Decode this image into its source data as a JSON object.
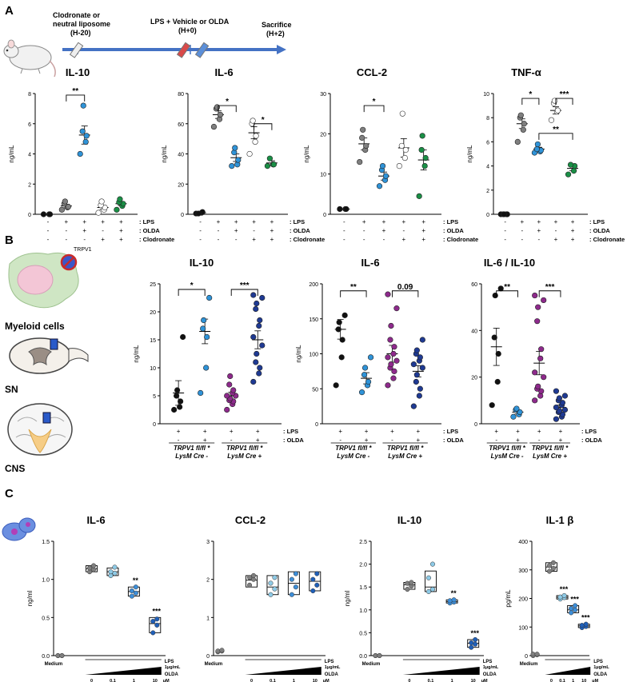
{
  "colors": {
    "gray": "#7f7f7f",
    "black": "#111111",
    "blue": "#2f93d8",
    "green": "#1a8f46",
    "purple": "#8e2a8c",
    "navy": "#1f3a93",
    "lightblue": "#8ecae6",
    "midblue": "#3d8ed8",
    "darkblue": "#1f5fb8"
  },
  "panel_labels": {
    "a": "A",
    "b": "B",
    "c": "C"
  },
  "timeline": {
    "step1": [
      "Clodronate or",
      "neutral liposome",
      "(H-20)"
    ],
    "step2": [
      "LPS + Vehicle or OLDA",
      "(H+0)"
    ],
    "step3": [
      "Sacrifice",
      "(H+2)"
    ]
  },
  "cartoons": {
    "trpv1": "TRPV1",
    "myeloid": "Myeloid cells",
    "sn": "SN",
    "cns": "CNS"
  },
  "sign_rows_a": {
    "labels": [
      ": LPS",
      ": OLDA",
      ": Clodronate"
    ],
    "LPS": [
      "-",
      "+",
      "+",
      "+",
      "+"
    ],
    "OLDA": [
      "-",
      "-",
      "+",
      "-",
      "+"
    ],
    "Clodronate": [
      "-",
      "-",
      "-",
      "+",
      "+"
    ]
  },
  "sign_rows_b": {
    "labels": [
      ": LPS",
      ": OLDA"
    ],
    "LPS": [
      "+",
      "+",
      "+",
      "+"
    ],
    "OLDA": [
      "-",
      "+",
      "-",
      "+"
    ],
    "genotype_left": [
      "TRPV1 fl/fl *",
      "LysM Cre -"
    ],
    "genotype_right": [
      "TRPV1 fl/fl *",
      "LysM Cre +"
    ]
  },
  "axis_c": {
    "medium": "Medium",
    "lps": "LPS",
    "lps_conc": "1μg/mL",
    "olda": "OLDA",
    "ticks": [
      "0",
      "0.1",
      "1",
      "10"
    ],
    "unit": "μM"
  },
  "chart_data": [
    {
      "panel": "A",
      "type": "scatter",
      "title": "IL-10",
      "ylabel": "ng/mL",
      "ylim": [
        0,
        8
      ],
      "yticks": [
        0,
        2,
        4,
        6,
        8
      ],
      "groups": [
        {
          "color": "black",
          "fill": true,
          "points": [
            0,
            0,
            0
          ],
          "mean": 0,
          "sem": 0
        },
        {
          "color": "gray",
          "fill": true,
          "points": [
            0.3,
            0.45,
            0.5,
            0.7,
            0.85
          ],
          "mean": 0.55,
          "sem": 0.12
        },
        {
          "color": "blue",
          "fill": true,
          "points": [
            4.0,
            4.8,
            5.2,
            5.5,
            7.2
          ],
          "mean": 5.25,
          "sem": 0.6
        },
        {
          "color": "black",
          "fill": false,
          "points": [
            0.1,
            0.3,
            0.45,
            0.6,
            0.85
          ],
          "mean": 0.45,
          "sem": 0.13
        },
        {
          "color": "green",
          "fill": true,
          "points": [
            0.3,
            0.55,
            0.7,
            0.8,
            1.0
          ],
          "mean": 0.7,
          "sem": 0.12
        }
      ],
      "sig": [
        {
          "from": 1,
          "to": 2,
          "y": 7.9,
          "label": "**"
        }
      ]
    },
    {
      "panel": "A",
      "type": "scatter",
      "title": "IL-6",
      "ylabel": "ng/mL",
      "ylim": [
        0,
        80
      ],
      "yticks": [
        0,
        20,
        40,
        60,
        80
      ],
      "groups": [
        {
          "color": "black",
          "fill": true,
          "points": [
            0.5,
            1,
            1.5,
            0.5
          ],
          "mean": 1,
          "sem": 0.3
        },
        {
          "color": "gray",
          "fill": true,
          "points": [
            58,
            63,
            66,
            70,
            71
          ],
          "mean": 66,
          "sem": 2.5
        },
        {
          "color": "blue",
          "fill": true,
          "points": [
            32,
            33,
            36,
            41,
            44
          ],
          "mean": 37.5,
          "sem": 2.5
        },
        {
          "color": "black",
          "fill": false,
          "points": [
            40,
            48,
            52,
            60,
            62
          ],
          "mean": 54,
          "sem": 4
        },
        {
          "color": "green",
          "fill": true,
          "points": [
            32,
            33,
            33,
            37
          ],
          "mean": 34,
          "sem": 1.5
        }
      ],
      "sig": [
        {
          "from": 1,
          "to": 2,
          "y": 72,
          "label": "*"
        },
        {
          "from": 3,
          "to": 4,
          "y": 60,
          "label": "*"
        }
      ]
    },
    {
      "panel": "A",
      "type": "scatter",
      "title": "CCL-2",
      "ylabel": "ng/mL",
      "ylim": [
        0,
        30
      ],
      "yticks": [
        0,
        10,
        20,
        30
      ],
      "groups": [
        {
          "color": "black",
          "fill": true,
          "points": [
            1.3,
            1.3,
            1.3
          ],
          "mean": 1.3,
          "sem": 0
        },
        {
          "color": "gray",
          "fill": true,
          "points": [
            13,
            16,
            17,
            19,
            21
          ],
          "mean": 17.5,
          "sem": 1.5
        },
        {
          "color": "blue",
          "fill": true,
          "points": [
            7,
            8.5,
            9.5,
            11,
            12
          ],
          "mean": 9.5,
          "sem": 1
        },
        {
          "color": "black",
          "fill": false,
          "points": [
            12,
            14,
            16,
            17,
            25
          ],
          "mean": 16.5,
          "sem": 2.3
        },
        {
          "color": "green",
          "fill": true,
          "points": [
            4.5,
            12,
            14,
            16,
            19.5
          ],
          "mean": 13.5,
          "sem": 2.5
        }
      ],
      "sig": [
        {
          "from": 1,
          "to": 2,
          "y": 27,
          "label": "*"
        }
      ]
    },
    {
      "panel": "A",
      "type": "scatter",
      "title": "TNF-α",
      "ylabel": "ng/mL",
      "ylim": [
        0,
        10
      ],
      "yticks": [
        0,
        2,
        4,
        6,
        8,
        10
      ],
      "groups": [
        {
          "color": "black",
          "fill": true,
          "points": [
            0,
            0,
            0,
            0,
            0
          ],
          "mean": 0,
          "sem": 0
        },
        {
          "color": "gray",
          "fill": true,
          "points": [
            6,
            7,
            7.5,
            8,
            8.2
          ],
          "mean": 7.5,
          "sem": 0.4
        },
        {
          "color": "blue",
          "fill": true,
          "points": [
            5.1,
            5.2,
            5.3,
            5.4,
            5.8
          ],
          "mean": 5.4,
          "sem": 0.15
        },
        {
          "color": "black",
          "fill": false,
          "points": [
            7.8,
            8.5,
            8.6,
            9.2,
            9.4
          ],
          "mean": 8.6,
          "sem": 0.3
        },
        {
          "color": "green",
          "fill": true,
          "points": [
            3.3,
            3.6,
            4.0,
            4.1
          ],
          "mean": 3.8,
          "sem": 0.2
        }
      ],
      "sig": [
        {
          "from": 1,
          "to": 2,
          "y": 9.6,
          "label": "*"
        },
        {
          "from": 3,
          "to": 4,
          "y": 9.6,
          "label": "***"
        },
        {
          "from": 2,
          "to": 4,
          "y": 6.7,
          "label": "**"
        }
      ]
    },
    {
      "panel": "B",
      "type": "scatter",
      "title": "IL-10",
      "ylabel": "ng/mL",
      "ylim": [
        0,
        25
      ],
      "yticks": [
        0,
        5,
        10,
        15,
        20,
        25
      ],
      "groups": [
        {
          "color": "black",
          "fill": true,
          "points": [
            2.5,
            3,
            4,
            5,
            6,
            15.5
          ],
          "mean": 5.5,
          "sem": 2.2
        },
        {
          "color": "blue",
          "fill": true,
          "points": [
            5.5,
            10,
            15.5,
            17,
            18.5,
            22.5
          ],
          "mean": 16.5,
          "sem": 2.2
        },
        {
          "color": "purple",
          "fill": true,
          "points": [
            2.5,
            3.5,
            4,
            4.2,
            4.5,
            5,
            5,
            5.5,
            6,
            7,
            8.5
          ],
          "mean": 5,
          "sem": 0.6
        },
        {
          "color": "navy",
          "fill": true,
          "points": [
            7.5,
            9,
            10,
            11,
            12.5,
            14,
            15.5,
            17.5,
            18.5,
            20.5,
            21.5,
            22.5,
            23
          ],
          "mean": 15,
          "sem": 1.6
        }
      ],
      "sig": [
        {
          "from": 0,
          "to": 1,
          "y": 24,
          "label": "*"
        },
        {
          "from": 2,
          "to": 3,
          "y": 24,
          "label": "***"
        }
      ]
    },
    {
      "panel": "B",
      "type": "scatter",
      "title": "IL-6",
      "ylabel": "ng/mL",
      "ylim": [
        0,
        200
      ],
      "yticks": [
        0,
        50,
        100,
        150,
        200
      ],
      "groups": [
        {
          "color": "black",
          "fill": true,
          "points": [
            55,
            95,
            120,
            135,
            145,
            155
          ],
          "mean": 135,
          "sem": 14
        },
        {
          "color": "blue",
          "fill": true,
          "points": [
            45,
            55,
            60,
            70,
            80,
            95
          ],
          "mean": 65,
          "sem": 8
        },
        {
          "color": "purple",
          "fill": true,
          "points": [
            55,
            65,
            75,
            80,
            85,
            90,
            95,
            100,
            110,
            120,
            140,
            165,
            185
          ],
          "mean": 100,
          "sem": 12
        },
        {
          "color": "navy",
          "fill": true,
          "points": [
            25,
            40,
            50,
            60,
            70,
            80,
            85,
            90,
            95,
            100,
            105,
            120
          ],
          "mean": 75,
          "sem": 8
        }
      ],
      "sig": [
        {
          "from": 0,
          "to": 1,
          "y": 190,
          "label": "**"
        },
        {
          "from": 2,
          "to": 3,
          "y": 190,
          "label": "0.09"
        }
      ]
    },
    {
      "panel": "B",
      "type": "scatter",
      "title": "IL-6 / IL-10",
      "ylabel": "",
      "ylim": [
        0,
        60
      ],
      "yticks": [
        0,
        20,
        40,
        60
      ],
      "groups": [
        {
          "color": "black",
          "fill": true,
          "points": [
            8,
            18,
            30,
            37,
            55,
            58
          ],
          "mean": 33,
          "sem": 8
        },
        {
          "color": "blue",
          "fill": true,
          "points": [
            3,
            4,
            5,
            6,
            6.5
          ],
          "mean": 5,
          "sem": 0.8
        },
        {
          "color": "purple",
          "fill": true,
          "points": [
            10,
            12,
            14,
            15,
            16,
            20,
            22,
            28,
            32,
            44,
            50,
            53,
            55
          ],
          "mean": 26,
          "sem": 5
        },
        {
          "color": "navy",
          "fill": true,
          "points": [
            2,
            3,
            4,
            5,
            5.5,
            6,
            7,
            8,
            9,
            10,
            11,
            12,
            14
          ],
          "mean": 7,
          "sem": 1
        }
      ],
      "sig": [
        {
          "from": 0,
          "to": 1,
          "y": 57,
          "label": "**"
        },
        {
          "from": 2,
          "to": 3,
          "y": 57,
          "label": "***"
        }
      ]
    },
    {
      "panel": "C",
      "type": "box",
      "title": "IL-6",
      "ylabel": "ng/ml",
      "ylim": [
        0,
        1.5
      ],
      "yticks": [
        0.0,
        0.5,
        1.0,
        1.5
      ],
      "tickdec": 1,
      "groups": [
        {
          "color": "gray",
          "points": [
            0,
            0,
            0,
            0
          ],
          "lo": 0,
          "hi": 0,
          "mid": 0,
          "sig": ""
        },
        {
          "color": "gray",
          "points": [
            1.1,
            1.13,
            1.15,
            1.18
          ],
          "lo": 1.1,
          "hi": 1.18,
          "mid": 1.14,
          "sig": ""
        },
        {
          "color": "lightblue",
          "points": [
            1.05,
            1.08,
            1.1,
            1.16
          ],
          "lo": 1.05,
          "hi": 1.15,
          "mid": 1.1,
          "sig": ""
        },
        {
          "color": "midblue",
          "points": [
            0.78,
            0.82,
            0.85,
            0.9
          ],
          "lo": 0.78,
          "hi": 0.9,
          "mid": 0.84,
          "sig": "**"
        },
        {
          "color": "darkblue",
          "points": [
            0.3,
            0.4,
            0.45,
            0.48
          ],
          "lo": 0.3,
          "hi": 0.5,
          "mid": 0.42,
          "sig": "***"
        }
      ]
    },
    {
      "panel": "C",
      "type": "box",
      "title": "CCL-2",
      "ylabel": "",
      "ylim": [
        0,
        3
      ],
      "yticks": [
        0,
        1,
        2,
        3
      ],
      "tickdec": 0,
      "groups": [
        {
          "color": "gray",
          "points": [
            0.1,
            0.12,
            0.12,
            0.14
          ],
          "lo": 0.1,
          "hi": 0.14,
          "mid": 0.12,
          "sig": ""
        },
        {
          "color": "gray",
          "points": [
            1.85,
            2.0,
            2.05,
            2.1
          ],
          "lo": 1.8,
          "hi": 2.1,
          "mid": 1.98,
          "sig": ""
        },
        {
          "color": "lightblue",
          "points": [
            1.6,
            1.75,
            1.9,
            2.05
          ],
          "lo": 1.6,
          "hi": 2.1,
          "mid": 1.8,
          "sig": ""
        },
        {
          "color": "midblue",
          "points": [
            1.6,
            1.8,
            2.0,
            2.15
          ],
          "lo": 1.6,
          "hi": 2.2,
          "mid": 1.9,
          "sig": ""
        },
        {
          "color": "darkblue",
          "points": [
            1.7,
            1.85,
            2.0,
            2.15
          ],
          "lo": 1.7,
          "hi": 2.2,
          "mid": 1.95,
          "sig": ""
        }
      ]
    },
    {
      "panel": "C",
      "type": "box",
      "title": "IL-10",
      "ylabel": "ng/ml",
      "ylim": [
        0,
        2.5
      ],
      "yticks": [
        0.0,
        0.5,
        1.0,
        1.5,
        2.0,
        2.5
      ],
      "tickdec": 1,
      "groups": [
        {
          "color": "gray",
          "points": [
            0,
            0,
            0,
            0
          ],
          "lo": 0,
          "hi": 0,
          "mid": 0,
          "sig": ""
        },
        {
          "color": "gray",
          "points": [
            1.45,
            1.52,
            1.58,
            1.6
          ],
          "lo": 1.45,
          "hi": 1.6,
          "mid": 1.55,
          "sig": ""
        },
        {
          "color": "lightblue",
          "points": [
            1.4,
            1.45,
            1.7,
            2.0
          ],
          "lo": 1.4,
          "hi": 1.85,
          "mid": 1.5,
          "sig": ""
        },
        {
          "color": "midblue",
          "points": [
            1.15,
            1.17,
            1.2,
            1.22
          ],
          "lo": 1.15,
          "hi": 1.22,
          "mid": 1.18,
          "sig": "**"
        },
        {
          "color": "darkblue",
          "points": [
            0.18,
            0.25,
            0.28,
            0.35
          ],
          "lo": 0.18,
          "hi": 0.35,
          "mid": 0.27,
          "sig": "***"
        }
      ]
    },
    {
      "panel": "C",
      "type": "box",
      "title": "IL-1 β",
      "ylabel": "pg/mL",
      "ylim": [
        0,
        400
      ],
      "yticks": [
        0,
        100,
        200,
        300,
        400
      ],
      "tickdec": 0,
      "groups": [
        {
          "color": "gray",
          "points": [
            0,
            3,
            5,
            5
          ],
          "lo": 0,
          "hi": 5,
          "mid": 3,
          "sig": ""
        },
        {
          "color": "gray",
          "points": [
            295,
            305,
            315,
            325
          ],
          "lo": 295,
          "hi": 325,
          "mid": 310,
          "sig": ""
        },
        {
          "color": "lightblue",
          "points": [
            198,
            203,
            205,
            210
          ],
          "lo": 198,
          "hi": 210,
          "mid": 204,
          "sig": "***"
        },
        {
          "color": "midblue",
          "points": [
            150,
            160,
            165,
            175
          ],
          "lo": 150,
          "hi": 175,
          "mid": 160,
          "sig": "***"
        },
        {
          "color": "darkblue",
          "points": [
            98,
            102,
            106,
            110
          ],
          "lo": 98,
          "hi": 110,
          "mid": 104,
          "sig": "***"
        }
      ]
    }
  ]
}
